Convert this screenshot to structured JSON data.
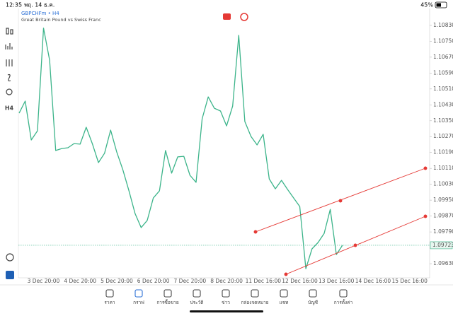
{
  "status_bar": {
    "time": "12:35",
    "date": "พฤ. 14 ธ.ค.",
    "battery": "45%"
  },
  "symbol": {
    "ticker": "GBPCHFm • H4",
    "description": "Great Britain Pound vs Swiss Franc"
  },
  "toolbar": {
    "timeframe": "H4"
  },
  "chart_data": {
    "type": "line",
    "categories": [
      null,
      null,
      null,
      null,
      "3 Dec 20:00",
      null,
      null,
      null,
      null,
      null,
      "4 Dec 20:00",
      null,
      null,
      null,
      null,
      null,
      "5 Dec 20:00",
      null,
      null,
      null,
      null,
      null,
      "6 Dec 20:00",
      null,
      null,
      null,
      null,
      null,
      "7 Dec 20:00",
      null,
      null,
      null,
      null,
      null,
      "8 Dec 20:00",
      null,
      null,
      null,
      null,
      null,
      "11 Dec 16:00",
      null,
      null,
      null,
      null,
      null,
      "12 Dec 16:00",
      null,
      null,
      null,
      null,
      null,
      "13 Dec 16:00",
      null,
      null,
      null,
      null,
      null,
      "14 Dec 16:00",
      null,
      null,
      null,
      null,
      null,
      "15 Dec 16:00"
    ],
    "series": [
      {
        "name": "GBPCHFm",
        "color": "#3cb48a",
        "values": [
          1.10388,
          1.10449,
          1.10253,
          1.10299,
          1.10816,
          1.10655,
          1.102,
          1.1021,
          1.10214,
          1.10235,
          1.10232,
          1.10317,
          1.10235,
          1.10139,
          1.10186,
          1.10303,
          1.10193,
          1.10104,
          1.09997,
          1.09883,
          1.09812,
          1.09848,
          1.09961,
          1.09997,
          1.102,
          1.10086,
          1.10168,
          1.10171,
          1.10075,
          1.1004,
          1.1036,
          1.1047,
          1.10413,
          1.10399,
          1.10324,
          1.10424,
          1.1078,
          1.10346,
          1.10271,
          1.10228,
          1.10282,
          1.10057,
          1.10007,
          1.1005,
          1.10004,
          1.09961,
          1.09918,
          1.09605,
          1.09705,
          1.09737,
          1.09783,
          1.09904,
          1.09676,
          1.09723,
          null,
          null,
          null,
          null,
          null,
          null,
          null,
          null,
          null,
          null,
          null
        ]
      }
    ],
    "ylim": [
      1.09559,
      1.10908
    ],
    "yticks": [
      {
        "value": 1.1083,
        "label": "1.10830"
      },
      {
        "value": 1.1075,
        "label": "1.10750"
      },
      {
        "value": 1.1067,
        "label": "1.10670"
      },
      {
        "value": 1.1059,
        "label": "1.10590"
      },
      {
        "value": 1.1051,
        "label": "1.10510"
      },
      {
        "value": 1.1043,
        "label": "1.10430"
      },
      {
        "value": 1.1035,
        "label": "1.10350"
      },
      {
        "value": 1.1027,
        "label": "1.10270"
      },
      {
        "value": 1.1019,
        "label": "1.10190"
      },
      {
        "value": 1.1011,
        "label": "1.10110"
      },
      {
        "value": 1.1003,
        "label": "1.10030"
      },
      {
        "value": 1.0995,
        "label": "1.09950"
      },
      {
        "value": 1.0987,
        "label": "1.09870"
      },
      {
        "value": 1.0979,
        "label": "1.09790"
      },
      {
        "value": 1.0963,
        "label": "1.09630"
      }
    ],
    "current_price": 1.09723,
    "grid": false
  },
  "nav": [
    "ราคา",
    "กราฟ",
    "การซื้อขาย",
    "ประวัติ",
    "ข่าว",
    "กล่องจดหมาย",
    "แชท",
    "บัญชี",
    "การตั้งค่า"
  ],
  "nav_active": 1
}
